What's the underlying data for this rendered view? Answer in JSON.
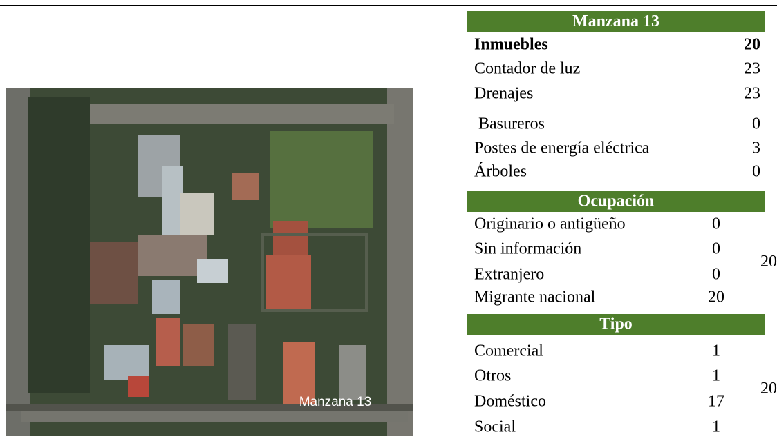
{
  "image": {
    "label": "Manzana 13"
  },
  "summary": {
    "title": "Manzana 13",
    "rows": [
      [
        "Inmuebles",
        20
      ],
      [
        "Contador de luz",
        23
      ],
      [
        "Drenajes",
        23
      ],
      [
        " Basureros",
        0
      ],
      [
        "Postes de energía eléctrica",
        3
      ],
      [
        "Árboles",
        0
      ]
    ]
  },
  "ocupacion": {
    "title": "Ocupación",
    "rows": [
      [
        "Originario o antigüeño",
        0
      ],
      [
        "Sin información",
        0
      ],
      [
        "Extranjero",
        0
      ],
      [
        "Migrante nacional",
        20
      ]
    ],
    "total": 20
  },
  "tipo": {
    "title": "Tipo",
    "rows": [
      [
        "Comercial",
        1
      ],
      [
        "Otros",
        1
      ],
      [
        "Doméstico",
        17
      ],
      [
        "Social",
        1
      ]
    ],
    "total": 20
  }
}
